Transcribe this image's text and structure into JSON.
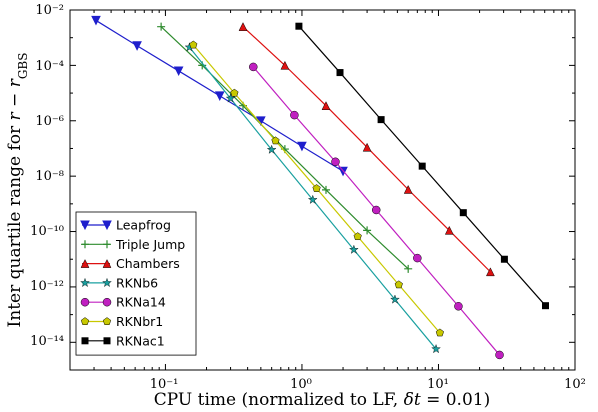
{
  "chart_data": {
    "type": "line",
    "title": "",
    "xlabel_parts": [
      "CPU time (normalized to LF, ",
      "δt",
      " = 0.01)"
    ],
    "ylabel_parts": [
      "Inter quartile range for ",
      "r",
      " − ",
      "r",
      "GBS"
    ],
    "xscale": "log",
    "yscale": "log",
    "xlim": [
      0.02,
      100
    ],
    "ylim": [
      1e-15,
      0.01
    ],
    "x_tick_labels": [
      "10⁻¹",
      "10⁰",
      "10¹",
      "10²"
    ],
    "y_tick_labels": [
      "10⁻²",
      "10⁻⁴",
      "10⁻⁶",
      "10⁻⁸",
      "10⁻¹⁰",
      "10⁻¹²",
      "10⁻¹⁴"
    ],
    "legend_position": "lower-left",
    "grid": false,
    "series": [
      {
        "name": "Leapfrog",
        "color": "#1f1fcc",
        "marker": "triangle-down",
        "x": [
          0.031,
          0.062,
          0.125,
          0.25,
          0.5,
          1.0,
          2.0
        ],
        "y": [
          0.0042,
          0.00051,
          6.3e-05,
          7.9e-06,
          9.9e-07,
          1.2e-07,
          1.5e-08
        ]
      },
      {
        "name": "Triple Jump",
        "color": "#2e8b2e",
        "marker": "plus",
        "x": [
          0.093,
          0.186,
          0.37,
          0.75,
          1.5,
          3.0,
          6.0
        ],
        "y": [
          0.0025,
          0.0001,
          3.5e-06,
          9.5e-08,
          3.2e-09,
          1.1e-10,
          4.5e-12
        ]
      },
      {
        "name": "Chambers",
        "color": "#dd1111",
        "marker": "triangle-up",
        "x": [
          0.37,
          0.75,
          1.5,
          3.0,
          6.0,
          12.0,
          24.0
        ],
        "y": [
          0.0025,
          0.0001,
          3.5e-06,
          1.1e-07,
          3.3e-09,
          1.1e-10,
          3.5e-12
        ]
      },
      {
        "name": "RKNb6",
        "color": "#1aa0a0",
        "marker": "star",
        "x": [
          0.15,
          0.3,
          0.6,
          1.2,
          2.4,
          4.8,
          9.6
        ],
        "y": [
          0.00045,
          6.4e-06,
          9e-08,
          1.4e-09,
          2.2e-11,
          3.5e-13,
          5.7e-15
        ]
      },
      {
        "name": "RKNa14",
        "color": "#c020c0",
        "marker": "circle",
        "x": [
          0.44,
          0.88,
          1.76,
          3.5,
          7.0,
          14.0,
          28.0
        ],
        "y": [
          8.8e-05,
          1.6e-06,
          3.3e-08,
          6e-10,
          1.1e-11,
          2e-13,
          3.5e-15
        ]
      },
      {
        "name": "RKNbr1",
        "color": "#c8c800",
        "marker": "pentagon",
        "x": [
          0.16,
          0.32,
          0.64,
          1.28,
          2.56,
          5.12,
          10.24
        ],
        "y": [
          0.00055,
          1e-05,
          1.9e-07,
          3.6e-09,
          6.6e-11,
          1.2e-12,
          2.2e-14
        ]
      },
      {
        "name": "RKNac1",
        "color": "#000000",
        "marker": "square",
        "x": [
          0.95,
          1.9,
          3.8,
          7.6,
          15.2,
          30.4,
          60.8
        ],
        "y": [
          0.0026,
          5.5e-05,
          1.1e-06,
          2.3e-08,
          4.8e-10,
          1e-11,
          2.1e-13
        ]
      }
    ]
  }
}
